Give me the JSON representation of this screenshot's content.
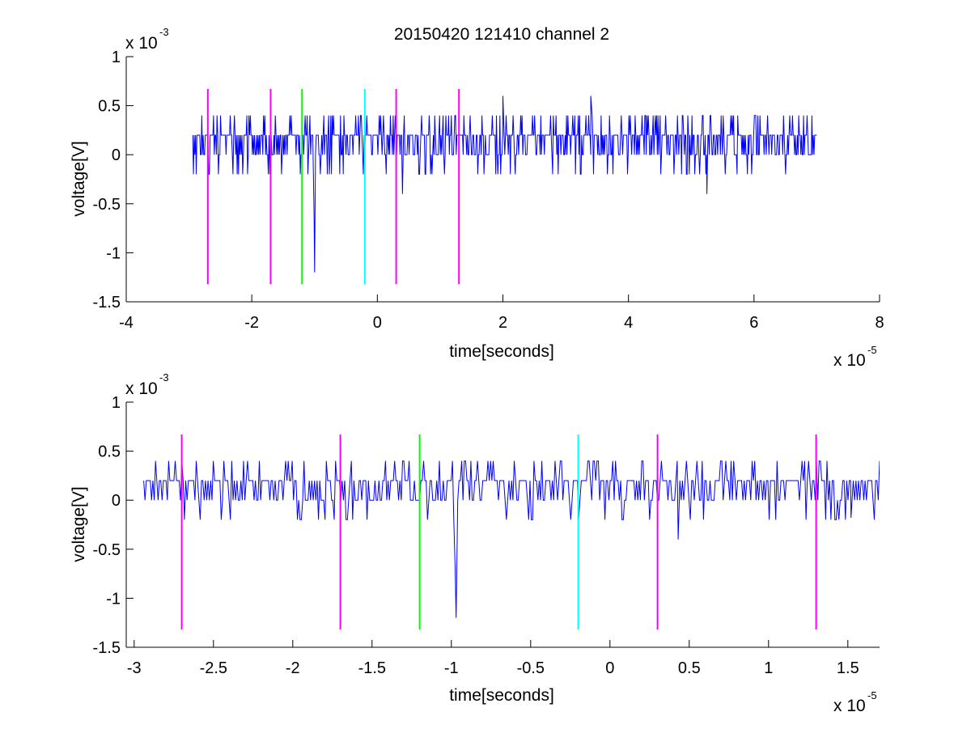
{
  "figure": {
    "title": "20150420 121410 channel 2",
    "background": "#ffffff"
  },
  "chart_data": [
    {
      "type": "line",
      "xlabel": "time[seconds]",
      "ylabel": "voltage[V]",
      "x_exponent": {
        "base": "x 10",
        "power": "-5"
      },
      "y_exponent": {
        "base": "x 10",
        "power": "-3"
      },
      "xlim": [
        -4e-05,
        8e-05
      ],
      "ylim": [
        -0.0015,
        0.001
      ],
      "x_ticks": [
        -4e-05,
        -2e-05,
        0,
        2e-05,
        4e-05,
        6e-05,
        8e-05
      ],
      "x_tick_labels": [
        "-4",
        "-2",
        "0",
        "2",
        "4",
        "6",
        "8"
      ],
      "y_ticks": [
        -0.0015,
        -0.001,
        -0.0005,
        0,
        0.0005,
        0.001
      ],
      "y_tick_labels": [
        "-1.5",
        "-1",
        "-0.5",
        "0",
        "0.5",
        "1"
      ],
      "grid": false,
      "series": [
        {
          "color": "#0000ff",
          "x_start": -2.94e-05,
          "x_end": 7e-05,
          "baseline_levels": [
            0,
            0.0002,
            0.0004
          ],
          "notable_points": [
            [
              -1e-05,
              -0.0012
            ],
            [
              4e-06,
              -0.0004
            ],
            [
              5.25e-05,
              -0.0004
            ],
            [
              2e-05,
              0.0006
            ],
            [
              3.4e-05,
              0.0006
            ]
          ]
        }
      ],
      "markers": [
        {
          "x": -2.7e-05,
          "color": "#ff00ff",
          "y_range": [
            -0.00132,
            0.00067
          ]
        },
        {
          "x": -1.7e-05,
          "color": "#ff00ff",
          "y_range": [
            -0.00132,
            0.00067
          ]
        },
        {
          "x": -1.2e-05,
          "color": "#00ff00",
          "y_range": [
            -0.00132,
            0.00067
          ]
        },
        {
          "x": -2e-06,
          "color": "#00ffff",
          "y_range": [
            -0.00132,
            0.00067
          ]
        },
        {
          "x": 3e-06,
          "color": "#ff00ff",
          "y_range": [
            -0.00132,
            0.00067
          ]
        },
        {
          "x": 1.3e-05,
          "color": "#ff00ff",
          "y_range": [
            -0.00132,
            0.00067
          ]
        }
      ]
    },
    {
      "type": "line",
      "xlabel": "time[seconds]",
      "ylabel": "voltage[V]",
      "x_exponent": {
        "base": "x 10",
        "power": "-5"
      },
      "y_exponent": {
        "base": "x 10",
        "power": "-3"
      },
      "xlim": [
        -3.05e-05,
        1.7e-05
      ],
      "ylim": [
        -0.0015,
        0.001
      ],
      "x_ticks": [
        -3e-05,
        -2.5e-05,
        -2e-05,
        -1.5e-05,
        -1e-05,
        -5e-06,
        0,
        5e-06,
        1e-05,
        1.5e-05
      ],
      "x_tick_labels": [
        "-3",
        "-2.5",
        "-2",
        "-1.5",
        "-1",
        "-0.5",
        "0",
        "0.5",
        "1",
        "1.5"
      ],
      "y_ticks": [
        -0.0015,
        -0.001,
        -0.0005,
        0,
        0.0005,
        0.001
      ],
      "y_tick_labels": [
        "-1.5",
        "-1",
        "-0.5",
        "0",
        "0.5",
        "1"
      ],
      "grid": false,
      "series": [
        {
          "color": "#0000ff",
          "x_start": -2.94e-05,
          "x_end": 1.7e-05,
          "baseline_levels": [
            0,
            0.0002,
            0.0004
          ],
          "notable_points": [
            [
              -9.7e-06,
              -0.0012
            ],
            [
              4.3e-06,
              -0.0004
            ],
            [
              1.52e-05,
              -0.00018
            ],
            [
              1.7e-05,
              0.0004
            ]
          ]
        }
      ],
      "markers": [
        {
          "x": -2.7e-05,
          "color": "#ff00ff",
          "y_range": [
            -0.00132,
            0.00067
          ]
        },
        {
          "x": -1.7e-05,
          "color": "#ff00ff",
          "y_range": [
            -0.00132,
            0.00067
          ]
        },
        {
          "x": -1.2e-05,
          "color": "#00ff00",
          "y_range": [
            -0.00132,
            0.00067
          ]
        },
        {
          "x": -2e-06,
          "color": "#00ffff",
          "y_range": [
            -0.00132,
            0.00067
          ]
        },
        {
          "x": 3e-06,
          "color": "#ff00ff",
          "y_range": [
            -0.00132,
            0.00067
          ]
        },
        {
          "x": 1.3e-05,
          "color": "#ff00ff",
          "y_range": [
            -0.00132,
            0.00067
          ]
        }
      ]
    }
  ]
}
